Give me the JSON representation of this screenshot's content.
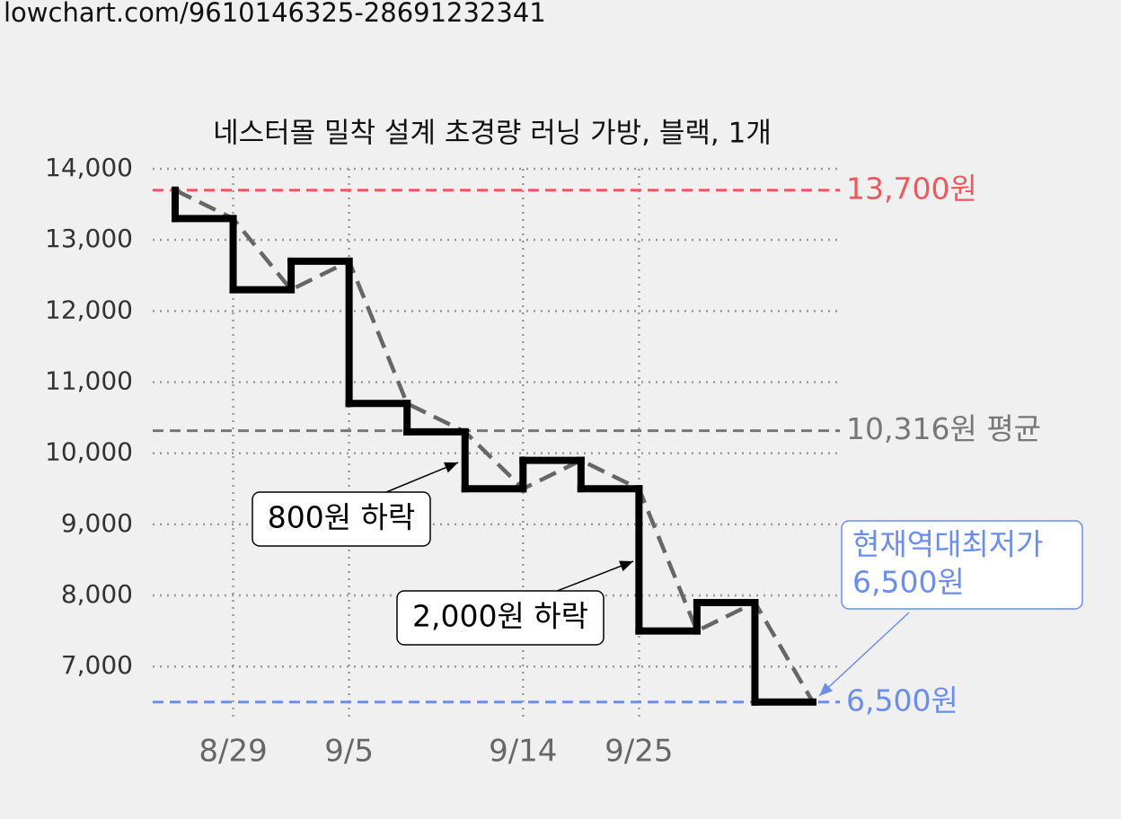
{
  "header": "lowchart.com/9610146325-28691232341",
  "chart_data": {
    "type": "step-line",
    "title": "네스터몰 밀착 설계 초경량 러닝 가방, 블랙, 1개",
    "categories": [
      null,
      "8/29",
      null,
      "9/5",
      null,
      null,
      "9/14",
      null,
      "9/25",
      null,
      null,
      null
    ],
    "values": [
      13700,
      13300,
      12300,
      12700,
      10700,
      10300,
      9500,
      9900,
      9500,
      7500,
      7900,
      6500
    ],
    "color": "#000000",
    "trend_color": "#666666",
    "ylim": [
      6270,
      14000
    ],
    "yticks": [
      {
        "value": 7000,
        "label": "7,000"
      },
      {
        "value": 8000,
        "label": "8,000"
      },
      {
        "value": 9000,
        "label": "9,000"
      },
      {
        "value": 10000,
        "label": "10,000"
      },
      {
        "value": 11000,
        "label": "11,000"
      },
      {
        "value": 12000,
        "label": "12,000"
      },
      {
        "value": 13000,
        "label": "13,000"
      },
      {
        "value": 14000,
        "label": "14,000"
      }
    ],
    "grid": true,
    "reference_lines": [
      {
        "value": 13700,
        "label": "13,700원",
        "color": "#f0585e"
      },
      {
        "value": 10316,
        "label": "10,316원 평균",
        "color": "#777777"
      },
      {
        "value": 6500,
        "label": "6,500원",
        "color": "#6a8ef0"
      }
    ],
    "annotations": [
      {
        "lines": [
          "800원 하락"
        ]
      },
      {
        "lines": [
          "2,000원 하락"
        ]
      },
      {
        "lines": [
          "현재역대최저가",
          "6,500원"
        ]
      }
    ]
  }
}
